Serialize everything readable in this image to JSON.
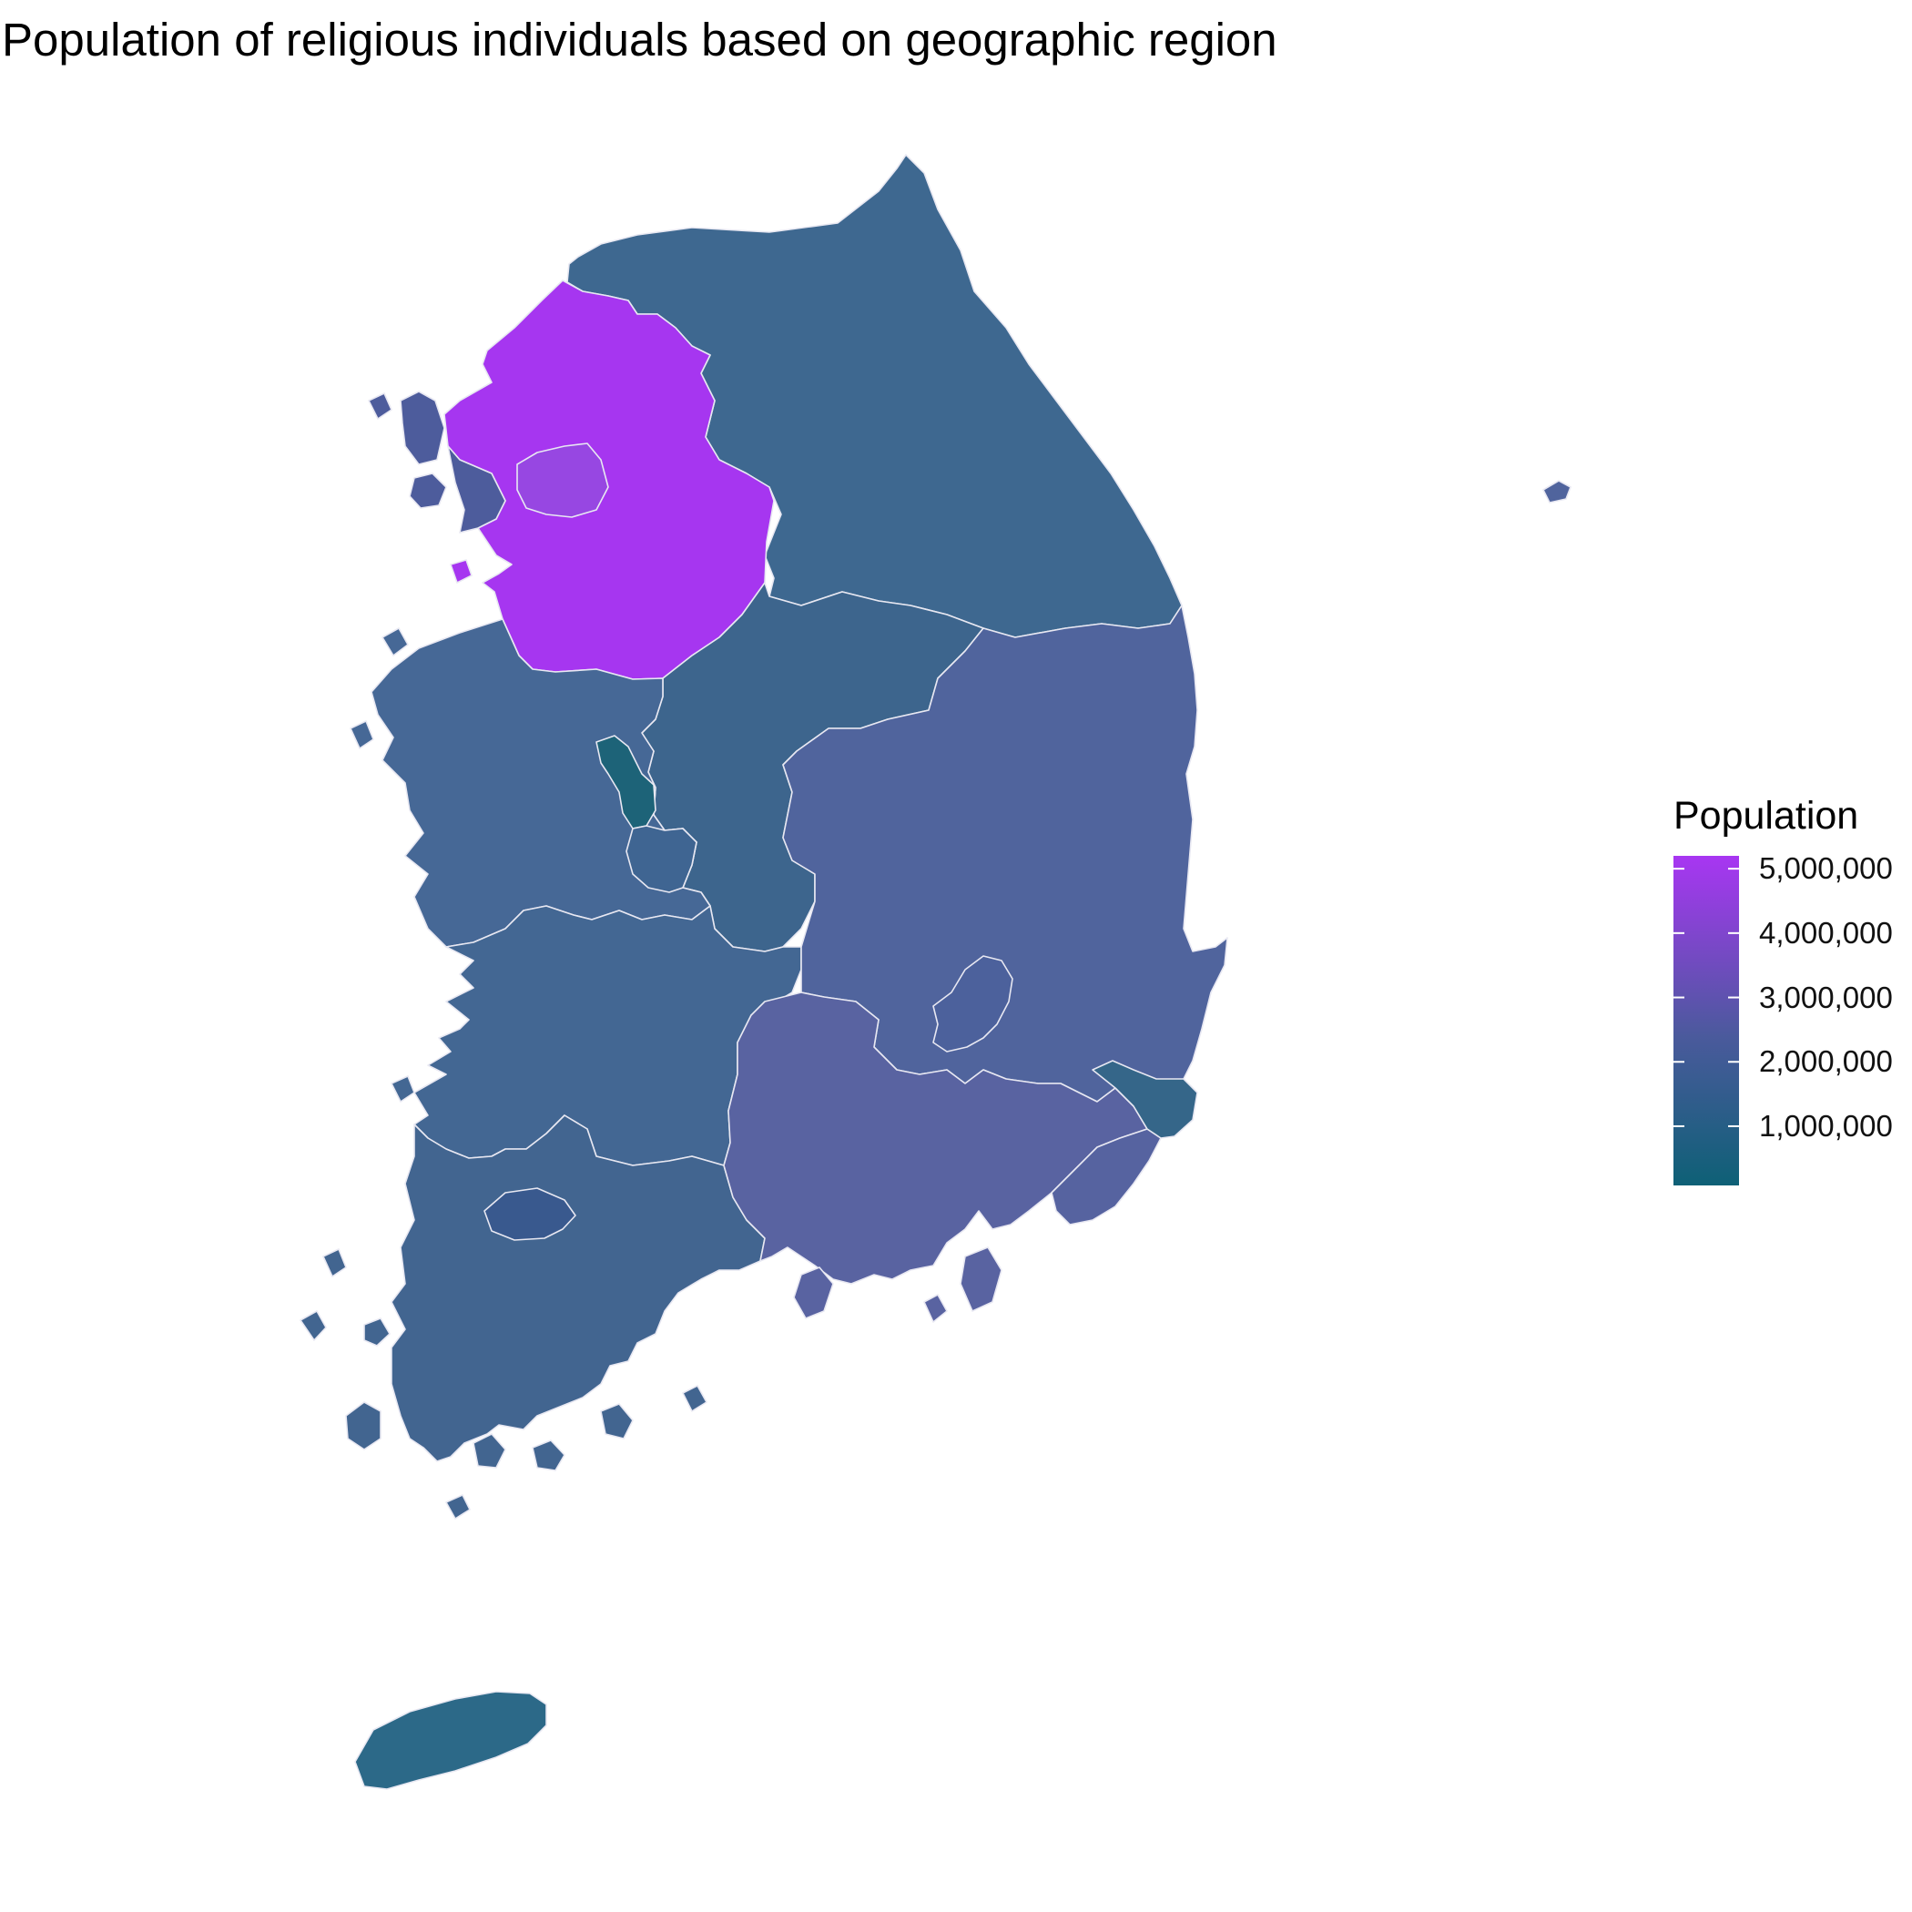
{
  "title": "Population of religious individuals based on geographic region",
  "legend": {
    "title": "Population",
    "min_value": 80000,
    "max_value": 5200000,
    "color_low": "#0e6076",
    "color_mid": "#4a5a9c",
    "color_high": "#a836f2",
    "ticks": [
      {
        "value": 1000000,
        "label": "1,000,000"
      },
      {
        "value": 2000000,
        "label": "2,000,000"
      },
      {
        "value": 3000000,
        "label": "3,000,000"
      },
      {
        "value": 4000000,
        "label": "4,000,000"
      },
      {
        "value": 5000000,
        "label": "5,000,000"
      }
    ]
  },
  "regions": [
    {
      "id": "gyeonggi",
      "color": "#a636f0"
    },
    {
      "id": "seoul",
      "color": "#9747e2"
    },
    {
      "id": "incheon",
      "color": "#4d5c9c"
    },
    {
      "id": "gangwon",
      "color": "#3e6890"
    },
    {
      "id": "chungbuk",
      "color": "#3d658d"
    },
    {
      "id": "chungnam",
      "color": "#466896"
    },
    {
      "id": "sejong",
      "color": "#1d6378"
    },
    {
      "id": "daejeon",
      "color": "#3f6592"
    },
    {
      "id": "jeonbuk",
      "color": "#436793"
    },
    {
      "id": "jeonnam",
      "color": "#426590"
    },
    {
      "id": "gwangju",
      "color": "#39598e"
    },
    {
      "id": "gyeongbuk",
      "color": "#50649d"
    },
    {
      "id": "daegu",
      "color": "#4c619c"
    },
    {
      "id": "gyeongnam",
      "color": "#5963a1"
    },
    {
      "id": "busan",
      "color": "#5663a0"
    },
    {
      "id": "ulsan",
      "color": "#356689"
    },
    {
      "id": "jeju",
      "color": "#2c6988"
    }
  ]
}
